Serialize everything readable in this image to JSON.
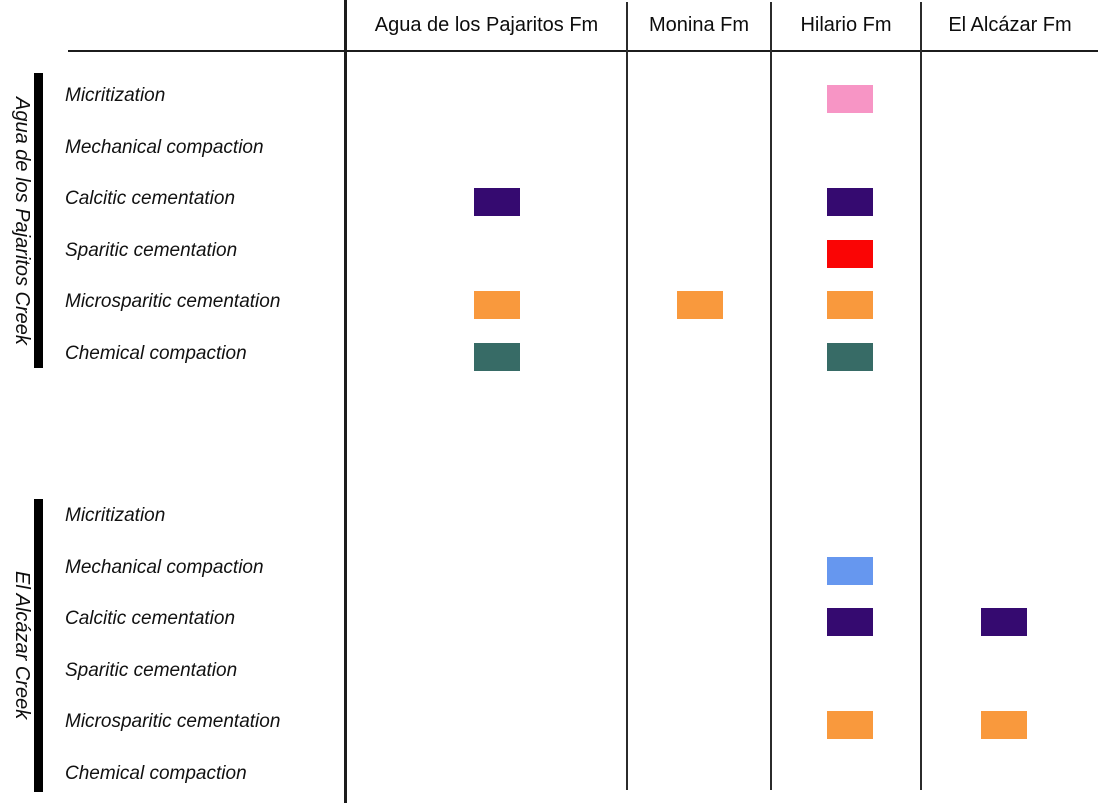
{
  "chart_data": {
    "type": "table",
    "columns": [
      "Agua de los Pajaritos Fm",
      "Monina Fm",
      "Hilario Fm",
      "El Alcázar Fm"
    ],
    "row_groups": [
      {
        "group": "Agua de los Pajaritos Creek",
        "rows": [
          {
            "process": "Micritization",
            "color": "#f795c5",
            "present_in": [
              false,
              false,
              true,
              false
            ]
          },
          {
            "process": "Mechanical compaction",
            "color": "#6697ef",
            "present_in": [
              false,
              false,
              false,
              false
            ]
          },
          {
            "process": "Calcitic cementation",
            "color": "#350a70",
            "present_in": [
              true,
              false,
              true,
              false
            ]
          },
          {
            "process": "Sparitic cementation",
            "color": "#fa0505",
            "present_in": [
              false,
              false,
              true,
              false
            ]
          },
          {
            "process": "Microsparitic cementation",
            "color": "#f9993d",
            "present_in": [
              true,
              true,
              true,
              false
            ]
          },
          {
            "process": "Chemical compaction",
            "color": "#376b66",
            "present_in": [
              true,
              false,
              true,
              false
            ]
          }
        ]
      },
      {
        "group": "El Alcázar Creek",
        "rows": [
          {
            "process": "Micritization",
            "color": "#f795c5",
            "present_in": [
              false,
              false,
              false,
              false
            ]
          },
          {
            "process": "Mechanical compaction",
            "color": "#6697ef",
            "present_in": [
              false,
              false,
              true,
              false
            ]
          },
          {
            "process": "Calcitic cementation",
            "color": "#350a70",
            "present_in": [
              false,
              false,
              true,
              true
            ]
          },
          {
            "process": "Sparitic cementation",
            "color": "#fa0505",
            "present_in": [
              false,
              false,
              false,
              false
            ]
          },
          {
            "process": "Microsparitic cementation",
            "color": "#f9993d",
            "present_in": [
              false,
              false,
              true,
              true
            ]
          },
          {
            "process": "Chemical compaction",
            "color": "#376b66",
            "present_in": [
              false,
              false,
              false,
              false
            ]
          }
        ]
      }
    ],
    "line_color": "#1c1c1c"
  }
}
